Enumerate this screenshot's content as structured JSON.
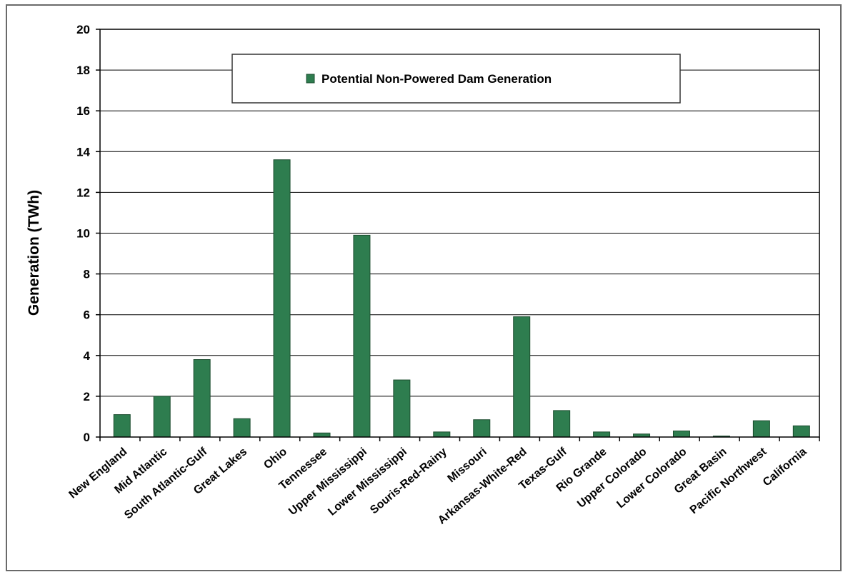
{
  "chart_data": {
    "type": "bar",
    "title": "",
    "xlabel": "",
    "ylabel": "Generation (TWh)",
    "ylim": [
      0,
      20
    ],
    "yticks": [
      0,
      2,
      4,
      6,
      8,
      10,
      12,
      14,
      16,
      18,
      20
    ],
    "grid": true,
    "legend_position": "top-center",
    "categories": [
      "New England",
      "Mid Atlantic",
      "South Atlantic-Gulf",
      "Great Lakes",
      "Ohio",
      "Tennessee",
      "Upper Mississippi",
      "Lower Mississippi",
      "Souris-Red-Rainy",
      "Missouri",
      "Arkansas-White-Red",
      "Texas-Gulf",
      "Rio Grande",
      "Upper Colorado",
      "Lower Colorado",
      "Great Basin",
      "Pacific Northwest",
      "California"
    ],
    "series": [
      {
        "name": "Potential Non-Powered Dam Generation",
        "color": "#2e7d4f",
        "values": [
          1.1,
          2.0,
          3.8,
          0.9,
          13.6,
          0.2,
          9.9,
          2.8,
          0.25,
          0.85,
          5.9,
          1.3,
          0.25,
          0.15,
          0.3,
          0.05,
          0.8,
          0.55
        ]
      }
    ]
  }
}
